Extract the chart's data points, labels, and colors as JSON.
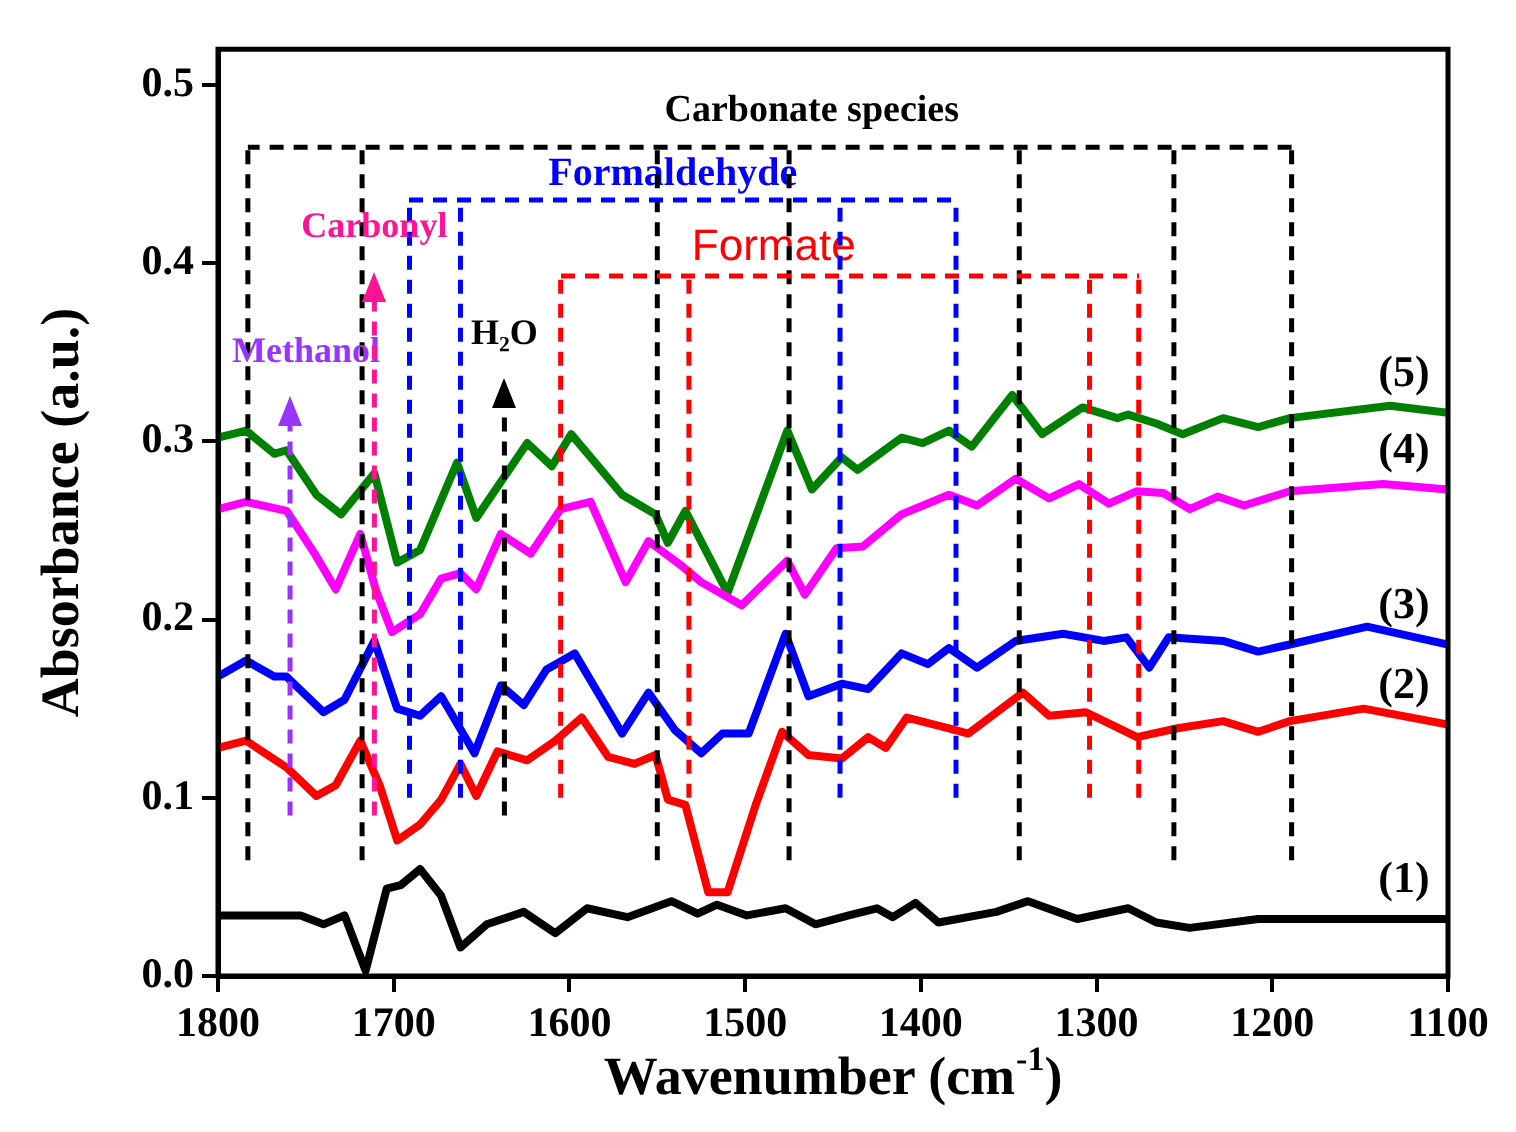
{
  "chart_data": {
    "type": "line",
    "xlabel": "Wavenumber (cm$^{-1}$)",
    "ylabel": "Absorbance (a.u.)",
    "xlim": [
      1800,
      1100
    ],
    "xticks": [
      1800,
      1700,
      1600,
      1500,
      1400,
      1300,
      1200,
      1100
    ],
    "ylim": [
      0,
      0.52
    ],
    "yticks": [
      {
        "value": 0,
        "label": "0.0"
      },
      0.1,
      0.2,
      0.3,
      0.4,
      0.5
    ],
    "grid": false,
    "legend": false,
    "marker": "none",
    "line_style": "solid",
    "series": [
      {
        "name": "(1)",
        "color": "#000000",
        "x": [
          1800,
          1753,
          1740,
          1728,
          1716,
          1704,
          1696,
          1685,
          1673,
          1662,
          1647,
          1626,
          1608,
          1590,
          1567,
          1542,
          1527,
          1516,
          1499,
          1477,
          1460,
          1441,
          1425,
          1416,
          1403,
          1390,
          1357,
          1339,
          1311,
          1282,
          1266,
          1247,
          1208,
          1100
        ],
        "values": [
          0.034,
          0.034,
          0.029,
          0.034,
          0.003,
          0.049,
          0.051,
          0.06,
          0.045,
          0.016,
          0.029,
          0.036,
          0.024,
          0.038,
          0.033,
          0.042,
          0.035,
          0.04,
          0.034,
          0.038,
          0.029,
          0.034,
          0.038,
          0.033,
          0.041,
          0.03,
          0.036,
          0.042,
          0.032,
          0.038,
          0.03,
          0.027,
          0.032,
          0.032
        ]
      },
      {
        "name": "(2)",
        "color": "#ff0000",
        "x": [
          1800,
          1784,
          1761,
          1744,
          1733,
          1719,
          1708,
          1698,
          1685,
          1673,
          1662,
          1653,
          1641,
          1624,
          1608,
          1593,
          1578,
          1563,
          1551,
          1544,
          1534,
          1521,
          1510,
          1494,
          1479,
          1464,
          1445,
          1430,
          1420,
          1408,
          1384,
          1373,
          1342,
          1327,
          1306,
          1277,
          1254,
          1228,
          1208,
          1190,
          1148,
          1100
        ],
        "values": [
          0.128,
          0.132,
          0.117,
          0.101,
          0.107,
          0.132,
          0.107,
          0.076,
          0.085,
          0.099,
          0.119,
          0.101,
          0.126,
          0.121,
          0.132,
          0.145,
          0.123,
          0.119,
          0.124,
          0.099,
          0.096,
          0.047,
          0.047,
          0.096,
          0.137,
          0.124,
          0.122,
          0.134,
          0.128,
          0.145,
          0.139,
          0.136,
          0.159,
          0.146,
          0.148,
          0.134,
          0.139,
          0.143,
          0.137,
          0.143,
          0.15,
          0.141
        ]
      },
      {
        "name": "(3)",
        "color": "#0000ff",
        "x": [
          1800,
          1784,
          1768,
          1761,
          1740,
          1728,
          1711,
          1698,
          1685,
          1673,
          1654,
          1639,
          1626,
          1613,
          1597,
          1570,
          1555,
          1540,
          1525,
          1513,
          1498,
          1477,
          1464,
          1445,
          1430,
          1411,
          1396,
          1384,
          1368,
          1346,
          1319,
          1296,
          1283,
          1270,
          1259,
          1228,
          1208,
          1190,
          1146,
          1100
        ],
        "values": [
          0.168,
          0.177,
          0.168,
          0.168,
          0.148,
          0.155,
          0.188,
          0.15,
          0.146,
          0.157,
          0.125,
          0.163,
          0.152,
          0.172,
          0.181,
          0.136,
          0.159,
          0.138,
          0.125,
          0.136,
          0.136,
          0.192,
          0.157,
          0.164,
          0.161,
          0.181,
          0.175,
          0.184,
          0.173,
          0.188,
          0.192,
          0.188,
          0.19,
          0.173,
          0.19,
          0.188,
          0.182,
          0.186,
          0.196,
          0.186
        ]
      },
      {
        "name": "(4)",
        "color": "#ff00ff",
        "x": [
          1800,
          1784,
          1761,
          1745,
          1733,
          1719,
          1710,
          1701,
          1685,
          1673,
          1662,
          1653,
          1639,
          1622,
          1605,
          1588,
          1568,
          1555,
          1536,
          1525,
          1502,
          1476,
          1466,
          1448,
          1433,
          1411,
          1384,
          1368,
          1346,
          1327,
          1310,
          1293,
          1277,
          1262,
          1247,
          1231,
          1216,
          1190,
          1137,
          1100
        ],
        "values": [
          0.262,
          0.266,
          0.261,
          0.237,
          0.217,
          0.248,
          0.216,
          0.193,
          0.203,
          0.223,
          0.226,
          0.217,
          0.248,
          0.237,
          0.262,
          0.266,
          0.221,
          0.244,
          0.23,
          0.221,
          0.208,
          0.233,
          0.214,
          0.24,
          0.241,
          0.259,
          0.27,
          0.264,
          0.279,
          0.268,
          0.276,
          0.265,
          0.272,
          0.271,
          0.262,
          0.269,
          0.264,
          0.272,
          0.276,
          0.273
        ]
      },
      {
        "name": "(5)",
        "color": "#008000",
        "x": [
          1800,
          1784,
          1768,
          1761,
          1744,
          1730,
          1711,
          1698,
          1685,
          1664,
          1653,
          1624,
          1610,
          1599,
          1570,
          1551,
          1544,
          1534,
          1510,
          1476,
          1462,
          1445,
          1436,
          1411,
          1399,
          1384,
          1371,
          1348,
          1331,
          1308,
          1288,
          1282,
          1266,
          1251,
          1228,
          1208,
          1190,
          1133,
          1100
        ],
        "values": [
          0.302,
          0.306,
          0.293,
          0.295,
          0.27,
          0.259,
          0.282,
          0.232,
          0.239,
          0.288,
          0.257,
          0.299,
          0.286,
          0.304,
          0.27,
          0.259,
          0.243,
          0.261,
          0.215,
          0.306,
          0.273,
          0.291,
          0.284,
          0.302,
          0.299,
          0.306,
          0.297,
          0.326,
          0.304,
          0.319,
          0.313,
          0.315,
          0.31,
          0.304,
          0.313,
          0.308,
          0.313,
          0.32,
          0.316
        ]
      }
    ],
    "annotations": [
      "Carbonate species",
      "Formaldehyde",
      "Formate"
    ],
    "ref_lines": [
      {
        "axis": "y",
        "value": 0.465,
        "color": "#000000",
        "line_style": "dashed"
      },
      {
        "axis": "x",
        "value": 1783,
        "color": "#000000",
        "line_style": "dashed"
      },
      {
        "axis": "x",
        "value": 1718,
        "color": "#000000",
        "line_style": "dashed"
      },
      {
        "axis": "x",
        "value": 1550,
        "color": "#000000",
        "line_style": "dashed"
      },
      {
        "axis": "x",
        "value": 1475,
        "color": "#000000",
        "line_style": "dashed"
      },
      {
        "axis": "x",
        "value": 1344,
        "color": "#000000",
        "line_style": "dashed"
      },
      {
        "axis": "x",
        "value": 1256,
        "color": "#000000",
        "line_style": "dashed"
      },
      {
        "axis": "x",
        "value": 1189,
        "color": "#000000",
        "line_style": "dashed"
      },
      {
        "axis": "x",
        "value": 1691,
        "color": "#0000ff",
        "line_style": "dashed"
      },
      {
        "axis": "x",
        "value": 1662,
        "color": "#0000ff",
        "line_style": "dashed"
      },
      {
        "axis": "x",
        "value": 1446,
        "color": "#0000ff",
        "line_style": "dashed"
      },
      {
        "axis": "x",
        "value": 1380,
        "color": "#0000ff",
        "line_style": "dashed"
      },
      {
        "axis": "x",
        "value": 1605,
        "color": "#ff0000",
        "line_style": "dashed"
      },
      {
        "axis": "x",
        "value": 1532,
        "color": "#ff0000",
        "line_style": "dashed"
      },
      {
        "axis": "x",
        "value": 1304,
        "color": "#ff0000",
        "line_style": "dashed"
      },
      {
        "axis": "x",
        "value": 1276,
        "color": "#ff0000",
        "line_style": "dashed"
      },
      {
        "axis": "x",
        "value": 1759,
        "color": "#9933ff",
        "line_style": "dashed",
        "label": "Methanol"
      },
      {
        "axis": "x",
        "value": 1711,
        "color": "#ff1493",
        "line_style": "dashed",
        "label": "Carbonyl"
      },
      {
        "axis": "x",
        "value": 1637,
        "color": "#000000",
        "line_style": "dashed",
        "label": "H₂O"
      }
    ]
  }
}
